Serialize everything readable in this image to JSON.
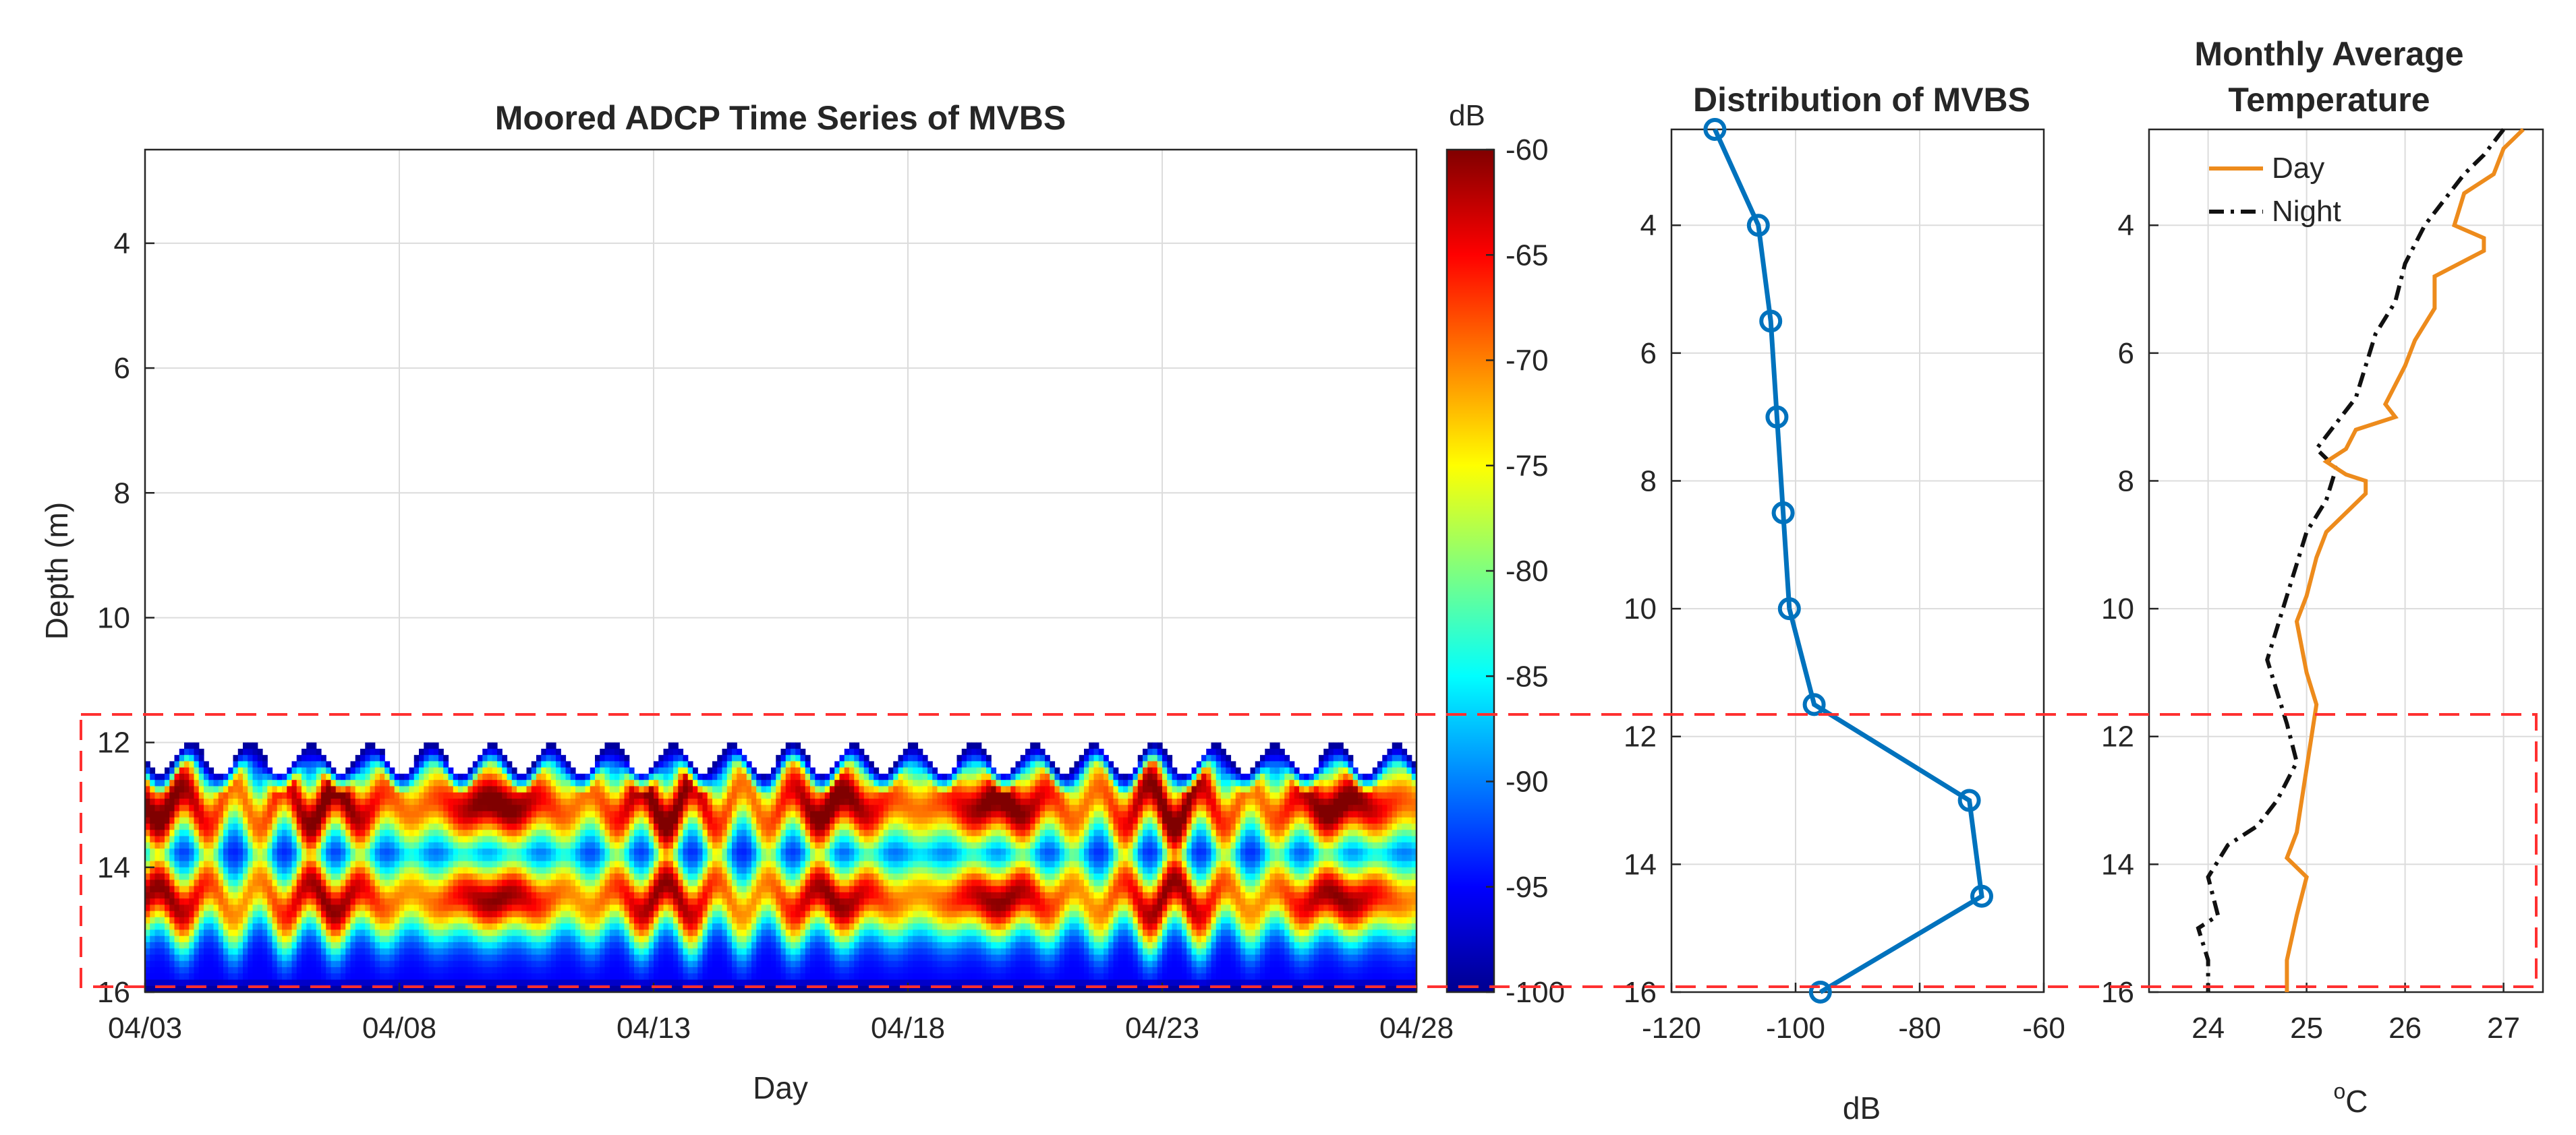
{
  "colors": {
    "line_blue": "#0072BD",
    "day_orange": "#ED8B1C",
    "night_black": "#111111",
    "highlight_red": "#FF3030"
  },
  "chart_data": [
    {
      "type": "heatmap",
      "title": "Moored ADCP Time Series of MVBS",
      "xlabel": "Day",
      "ylabel": "Depth (m)",
      "x_ticks": [
        "04/03",
        "04/08",
        "04/13",
        "04/18",
        "04/23",
        "04/28"
      ],
      "x_range_days": [
        0,
        25
      ],
      "ylim": [
        2.5,
        16
      ],
      "y_reversed": true,
      "y_ticks": [
        4,
        6,
        8,
        10,
        12,
        14,
        16
      ],
      "scatter_top_depth": 12,
      "scatter_bottom_depth": 16,
      "strong_band_depths": [
        13,
        14.5
      ],
      "colorbar": {
        "unit": "dB",
        "range": [
          -100,
          -60
        ],
        "ticks": [
          -60,
          -65,
          -70,
          -75,
          -80,
          -85,
          -90,
          -95,
          -100
        ],
        "colormap": "jet"
      },
      "highlight_box": {
        "depth_range": [
          11.5,
          15.9
        ],
        "style": "dashed",
        "color": "red"
      }
    },
    {
      "type": "line",
      "title": "Distribution of MVBS",
      "xlabel": "dB",
      "ylabel": "",
      "x": [
        -113,
        -106,
        -104,
        -103,
        -102,
        -101,
        -97,
        -72,
        -70,
        -96
      ],
      "y": [
        2.5,
        4,
        5.5,
        7,
        8.5,
        10,
        11.5,
        13,
        14.5,
        16
      ],
      "marker": "o",
      "xlim": [
        -120,
        -60
      ],
      "x_ticks": [
        -120,
        -100,
        -80,
        -60
      ],
      "ylim": [
        2.5,
        16
      ],
      "y_reversed": true,
      "y_ticks": [
        4,
        6,
        8,
        10,
        12,
        14,
        16
      ]
    },
    {
      "type": "line",
      "title": "Monthly Average Temperature",
      "title_lines": [
        "Monthly Average",
        "Temperature"
      ],
      "xlabel_base": "C",
      "xlabel_super": "o",
      "xlim": [
        23.4,
        27.4
      ],
      "x_ticks": [
        24,
        25,
        26,
        27
      ],
      "ylim": [
        2.5,
        16
      ],
      "y_reversed": true,
      "y_ticks": [
        4,
        6,
        8,
        10,
        12,
        14,
        16
      ],
      "legend": {
        "location": "top-left",
        "entries": [
          "Day",
          "Night"
        ]
      },
      "series": [
        {
          "name": "Day",
          "style": "solid",
          "x": [
            27.2,
            27.0,
            26.9,
            26.6,
            26.5,
            26.8,
            26.8,
            26.3,
            26.3,
            26.1,
            26.0,
            25.8,
            25.9,
            25.5,
            25.4,
            25.2,
            25.4,
            25.6,
            25.6,
            25.4,
            25.2,
            25.1,
            25.0,
            24.9,
            25.0,
            25.1,
            25.0,
            24.9,
            24.8,
            25.0,
            24.9,
            24.8,
            24.8
          ],
          "y": [
            2.5,
            2.8,
            3.2,
            3.5,
            4.0,
            4.2,
            4.4,
            4.8,
            5.3,
            5.8,
            6.2,
            6.8,
            7.0,
            7.2,
            7.5,
            7.7,
            7.9,
            8.0,
            8.2,
            8.5,
            8.8,
            9.2,
            9.8,
            10.2,
            11.0,
            11.5,
            12.5,
            13.5,
            13.9,
            14.2,
            14.8,
            15.5,
            16.0
          ]
        },
        {
          "name": "Night",
          "style": "dashdot",
          "x": [
            27.0,
            26.8,
            26.6,
            26.4,
            26.2,
            26.0,
            25.9,
            25.7,
            25.6,
            25.5,
            25.3,
            25.2,
            25.1,
            25.3,
            25.2,
            25.0,
            24.9,
            24.8,
            24.7,
            24.6,
            24.7,
            24.8,
            24.9,
            24.7,
            24.5,
            24.2,
            24.0,
            24.1,
            23.9,
            24.0,
            24.0
          ],
          "y": [
            2.5,
            2.9,
            3.2,
            3.6,
            4.0,
            4.6,
            5.2,
            5.7,
            6.2,
            6.7,
            7.1,
            7.3,
            7.5,
            7.8,
            8.3,
            8.8,
            9.3,
            9.8,
            10.3,
            10.8,
            11.3,
            11.8,
            12.4,
            13.0,
            13.4,
            13.7,
            14.2,
            14.8,
            15.0,
            15.5,
            16.0
          ]
        }
      ],
      "highlight_box": {
        "depth_range": [
          11.5,
          15.9
        ],
        "style": "dashed",
        "color": "red"
      }
    }
  ]
}
